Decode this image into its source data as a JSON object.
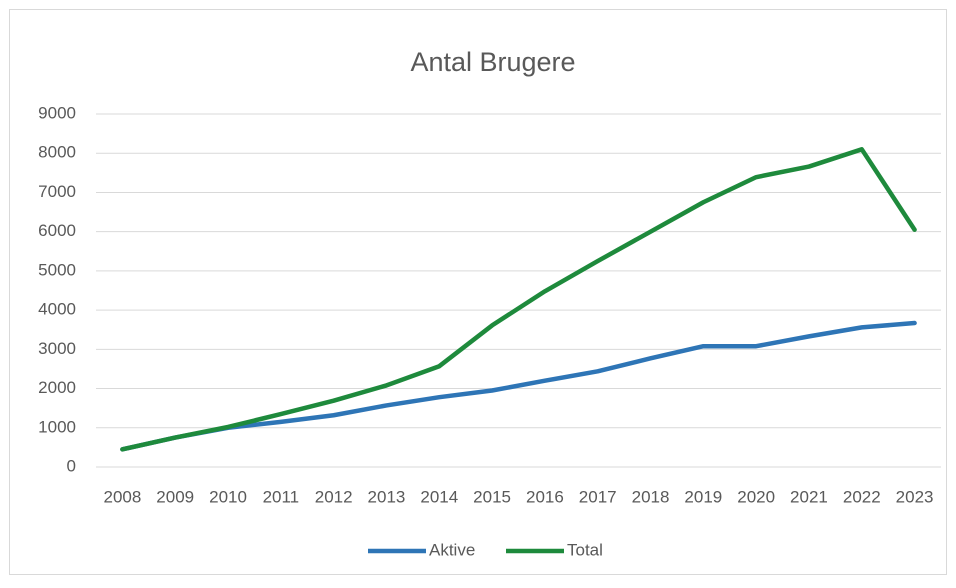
{
  "chart_data": {
    "type": "line",
    "title": "Antal Brugere",
    "categories": [
      "2008",
      "2009",
      "2010",
      "2011",
      "2012",
      "2013",
      "2014",
      "2015",
      "2016",
      "2017",
      "2018",
      "2019",
      "2020",
      "2021",
      "2022",
      "2023"
    ],
    "series": [
      {
        "name": "Aktive",
        "color": "#2e75b6",
        "values": [
          450,
          750,
          1000,
          1150,
          1320,
          1570,
          1780,
          1950,
          2200,
          2440,
          2770,
          3080,
          3080,
          3330,
          3560,
          3670
        ]
      },
      {
        "name": "Total",
        "color": "#1e8a3c",
        "values": [
          450,
          750,
          1020,
          1350,
          1690,
          2080,
          2570,
          3610,
          4480,
          5250,
          6000,
          6750,
          7390,
          7660,
          8100,
          6050
        ]
      }
    ],
    "ylim": [
      0,
      9000
    ],
    "yticks": [
      0,
      1000,
      2000,
      3000,
      4000,
      5000,
      6000,
      7000,
      8000,
      9000
    ],
    "grid": true,
    "legend": "bottom"
  }
}
